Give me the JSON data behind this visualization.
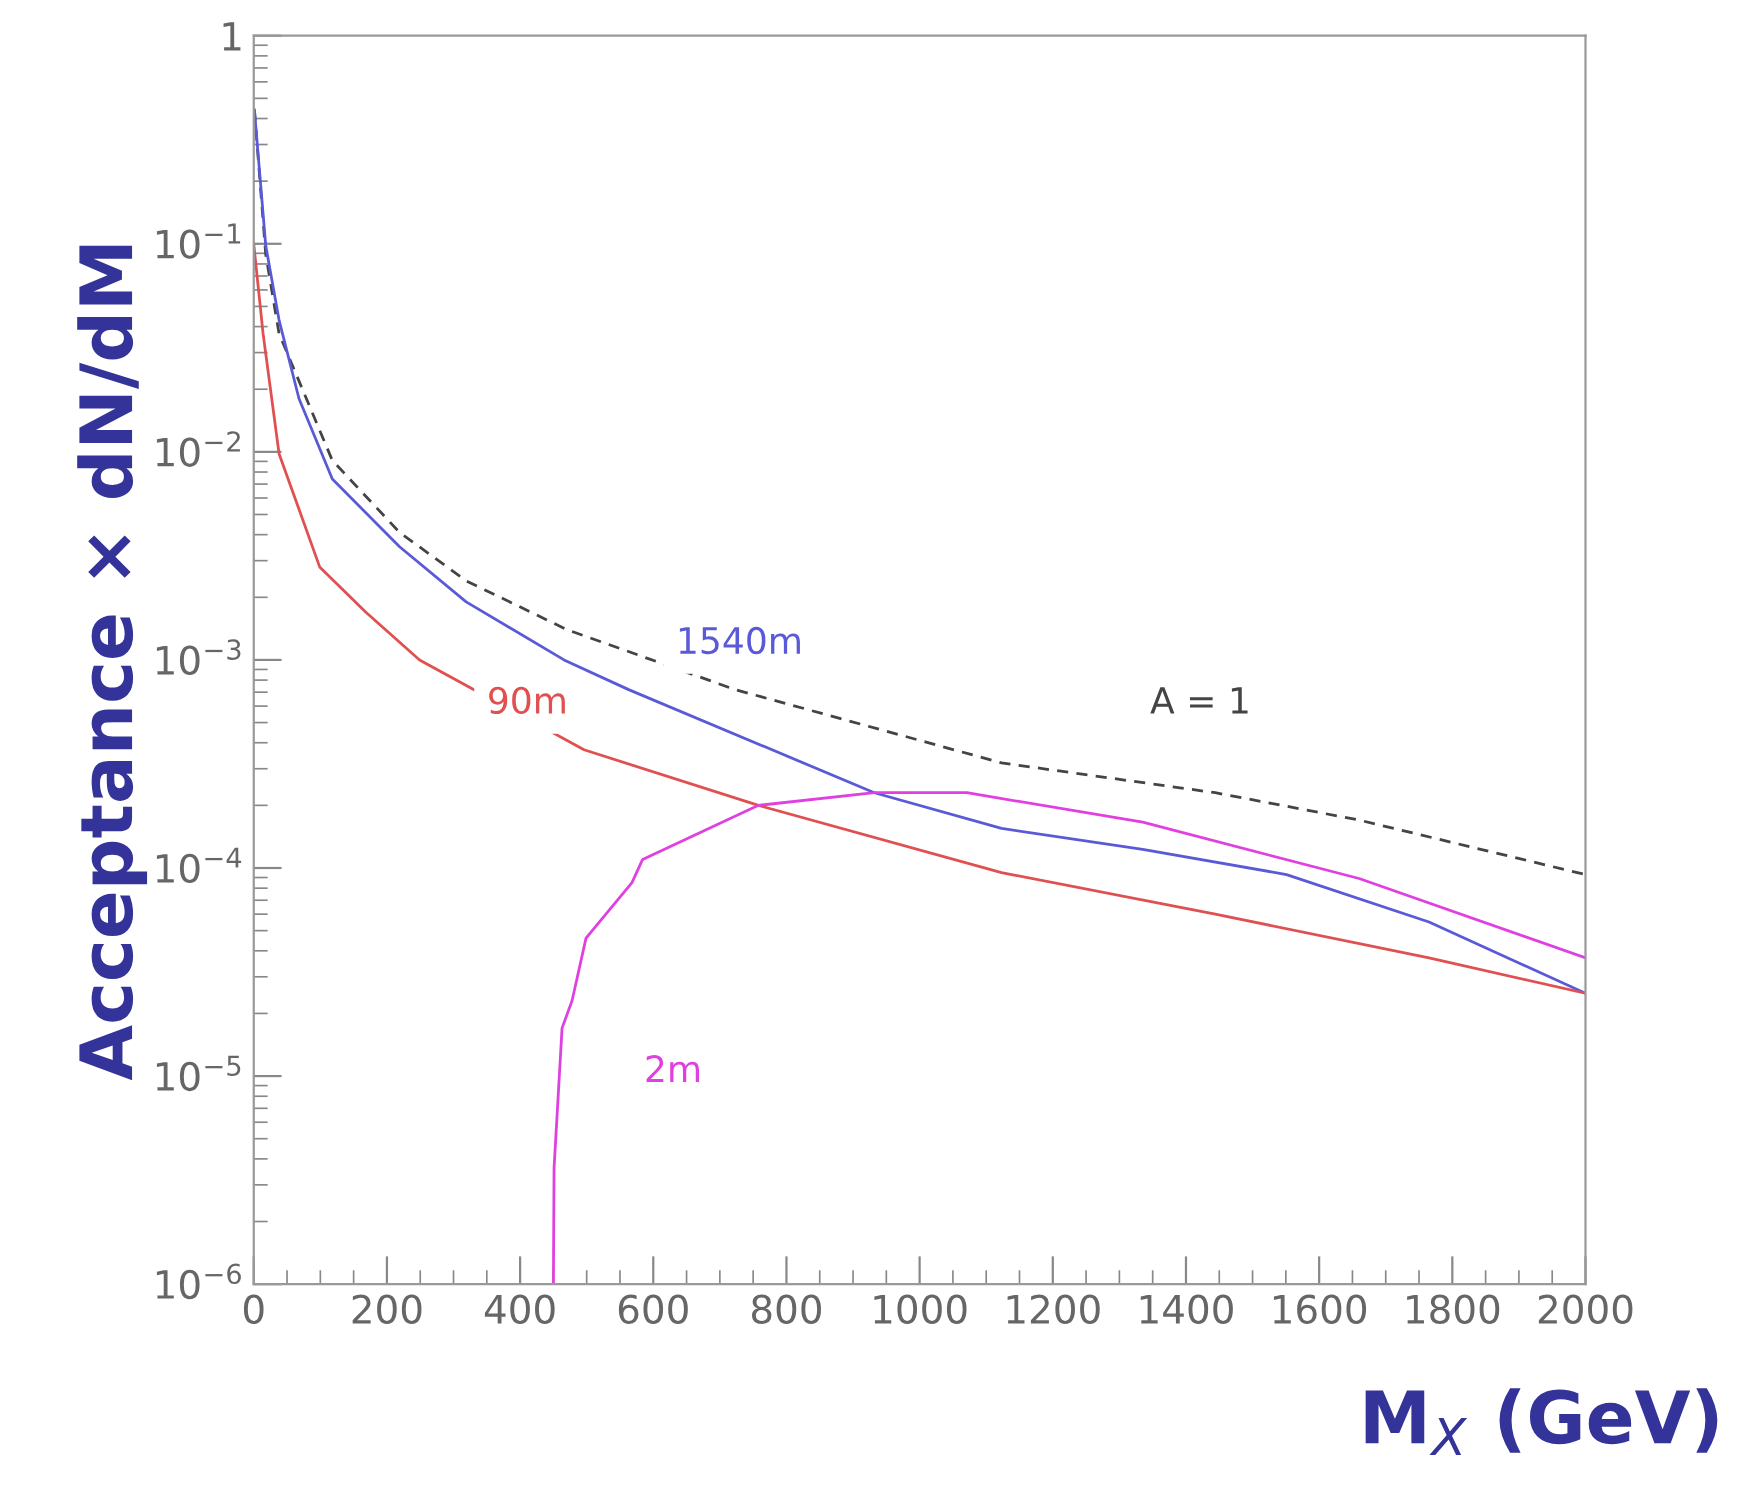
{
  "chart_data": {
    "type": "line",
    "xlabel": "M$_{X}$ (GeV)",
    "ylabel": "Acceptance × dN/dM",
    "log": "y",
    "grid": false,
    "xlim": [
      0,
      2000
    ],
    "ylim": [
      1e-06,
      1
    ],
    "xticks": [
      0,
      200,
      400,
      600,
      800,
      1000,
      1200,
      1400,
      1600,
      1800,
      2000
    ],
    "yticks": [
      {
        "value": 1e-06,
        "label": "10$^{−6}$"
      },
      {
        "value": 1e-05,
        "label": "10$^{−5}$"
      },
      {
        "value": 0.0001,
        "label": "10$^{−4}$"
      },
      {
        "value": 0.001,
        "label": "10$^{−3}$"
      },
      {
        "value": 0.01,
        "label": "10$^{−2}$"
      },
      {
        "value": 0.1,
        "label": "10$^{−1}$"
      },
      1
    ],
    "series": [
      {
        "name": "A = 1",
        "color": "#444444",
        "line_style": "dashed",
        "x": [
          1,
          18,
          38,
          118,
          219,
          319,
          470,
          723,
          1123,
          1444,
          1660,
          2000
        ],
        "values": [
          0.44,
          0.089,
          0.037,
          0.0091,
          0.0041,
          0.0024,
          0.0014,
          0.00072,
          0.00032,
          0.00023,
          0.00017,
          9.3e-05
        ]
      },
      {
        "name": "1540m",
        "color": "#5a5ad8",
        "line_style": "solid",
        "x": [
          1,
          18,
          38,
          68,
          118,
          219,
          319,
          466,
          563,
          932,
          1123,
          1335,
          1551,
          1765,
          2000
        ],
        "values": [
          0.44,
          0.098,
          0.043,
          0.018,
          0.0074,
          0.0035,
          0.0019,
          0.001,
          0.00072,
          0.00023,
          0.000155,
          0.000123,
          9.3e-05,
          5.5e-05,
          2.5e-05
        ]
      },
      {
        "name": "90m",
        "color": "#e05050",
        "line_style": "solid",
        "x": [
          0,
          14,
          38,
          99,
          168,
          249,
          496,
          758,
          1123,
          1444,
          1765,
          2000
        ],
        "values": [
          0.1,
          0.037,
          0.0098,
          0.0028,
          0.0017,
          0.001,
          0.00037,
          0.0002,
          9.5e-05,
          6e-05,
          3.7e-05,
          2.5e-05
        ]
      },
      {
        "name": "2m",
        "color": "#e040e0",
        "line_style": "solid",
        "x": [
          450,
          451,
          463,
          478,
          499,
          568,
          584,
          758,
          932,
          1071,
          1335,
          1660,
          2000
        ],
        "values": [
          1e-06,
          3.6e-06,
          1.7e-05,
          2.3e-05,
          4.6e-05,
          8.5e-05,
          0.00011,
          0.0002,
          0.00023,
          0.00023,
          0.000166,
          8.9e-05,
          3.7e-05
        ]
      }
    ]
  }
}
